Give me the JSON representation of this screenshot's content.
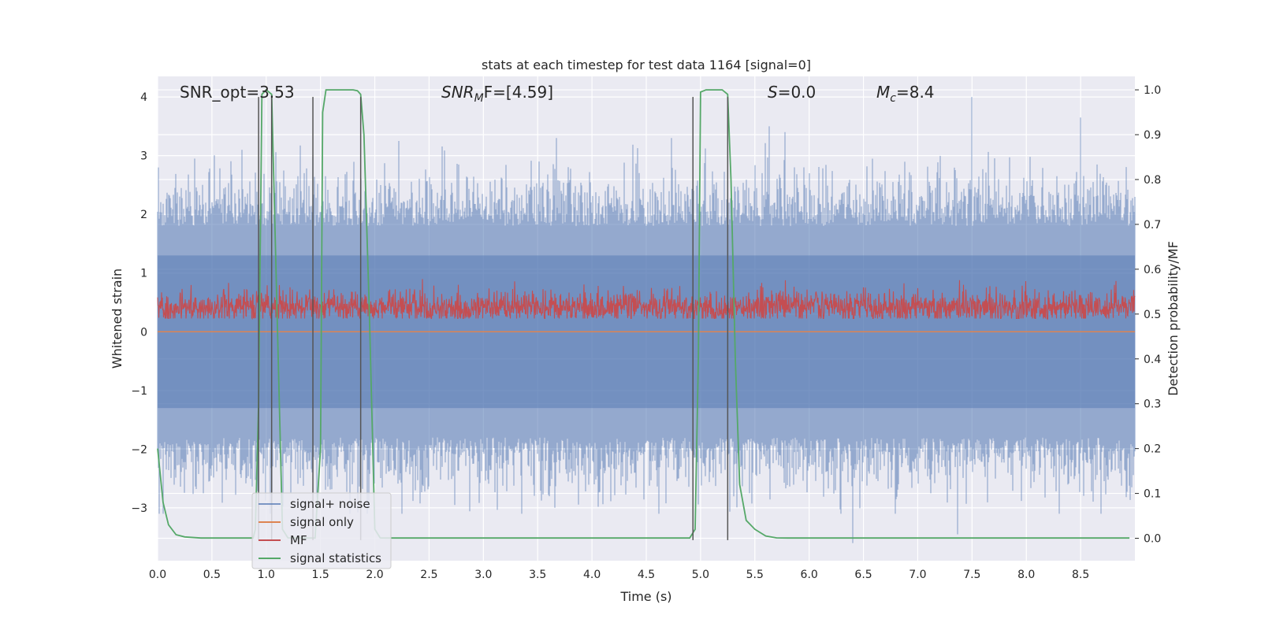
{
  "chart_data": {
    "type": "line",
    "title": "stats at each timestep for test data 1164 [signal=0]",
    "xlabel": "Time (s)",
    "ylabel": "Whitened strain",
    "ylabel_right": "Detection probability/MF",
    "xlim": [
      0,
      9
    ],
    "ylim": [
      -3.9,
      4.35
    ],
    "ylim_right": [
      -0.05,
      1.03
    ],
    "xticks": [
      0.0,
      0.5,
      1.0,
      1.5,
      2.0,
      2.5,
      3.0,
      3.5,
      4.0,
      4.5,
      5.0,
      5.5,
      6.0,
      6.5,
      7.0,
      7.5,
      8.0,
      8.5
    ],
    "xtick_labels": [
      "0.0",
      "0.5",
      "1.0",
      "1.5",
      "2.0",
      "2.5",
      "3.0",
      "3.5",
      "4.0",
      "4.5",
      "5.0",
      "5.5",
      "6.0",
      "6.5",
      "7.0",
      "7.5",
      "8.0",
      "8.5"
    ],
    "yticks": [
      -3,
      -2,
      -1,
      0,
      1,
      2,
      3,
      4
    ],
    "ytick_labels": [
      "−3",
      "−2",
      "−1",
      "0",
      "1",
      "2",
      "3",
      "4"
    ],
    "yticks_right": [
      0.0,
      0.1,
      0.2,
      0.3,
      0.4,
      0.5,
      0.6,
      0.7,
      0.8,
      0.9,
      1.0
    ],
    "ytick_labels_right": [
      "0.0",
      "0.1",
      "0.2",
      "0.3",
      "0.4",
      "0.5",
      "0.6",
      "0.7",
      "0.8",
      "0.9",
      "1.0"
    ],
    "annotations": {
      "snr_opt": "SNR_opt=3.53",
      "snr_mf_sym": "SNR",
      "snr_mf_sub": "M",
      "snr_mf_rest": "F=[4.59]",
      "s_sym": "S",
      "s_rest": "=0.0",
      "mc_sym": "M",
      "mc_sub": "c",
      "mc_rest": "=8.4"
    },
    "vertical_lines_s": [
      0.93,
      1.05,
      1.43,
      1.87,
      4.93,
      5.25
    ],
    "series": [
      {
        "name": "signal+ noise",
        "color": "#4c72b0",
        "axis": "left",
        "description": "whitened noise, amplitude envelope approx ±1.8 with spikes up to 4.0 and down to -3.6",
        "peaks": [
          {
            "x": 0.78,
            "y": 3.1
          },
          {
            "x": 2.22,
            "y": 3.25
          },
          {
            "x": 5.63,
            "y": 3.5
          },
          {
            "x": 5.78,
            "y": 3.4
          },
          {
            "x": 7.5,
            "y": 4.0
          },
          {
            "x": 8.5,
            "y": 3.65
          },
          {
            "x": 6.4,
            "y": -3.6
          },
          {
            "x": 7.37,
            "y": -3.45
          },
          {
            "x": 1.05,
            "y": -3.45
          }
        ]
      },
      {
        "name": "signal only",
        "color": "#dd8452",
        "axis": "left",
        "x": [
          0,
          9
        ],
        "y": [
          0,
          0
        ]
      },
      {
        "name": "MF",
        "color": "#c44e52",
        "axis": "right",
        "description": "matched-filter output fluctuating between approx 0.49 and 0.58"
      },
      {
        "name": "signal statistics",
        "color": "#55a868",
        "axis": "right",
        "x": [
          0.0,
          0.05,
          0.1,
          0.17,
          0.25,
          0.4,
          0.6,
          0.8,
          0.88,
          0.9,
          0.93,
          0.96,
          1.0,
          1.05,
          1.1,
          1.15,
          1.2,
          1.3,
          1.4,
          1.45,
          1.5,
          1.52,
          1.55,
          1.6,
          1.7,
          1.8,
          1.84,
          1.87,
          1.9,
          1.95,
          2.0,
          2.05,
          2.1,
          3.0,
          4.0,
          4.9,
          4.95,
          4.98,
          5.0,
          5.05,
          5.2,
          5.25,
          5.28,
          5.32,
          5.36,
          5.42,
          5.5,
          5.6,
          5.7,
          5.8,
          6.5,
          7.5,
          8.5,
          8.95
        ],
        "y": [
          0.2,
          0.08,
          0.03,
          0.008,
          0.003,
          0.0005,
          0.0005,
          0.0005,
          0.0005,
          0.02,
          0.3,
          0.99,
          1.0,
          0.99,
          0.5,
          0.02,
          0.001,
          0.0005,
          0.0005,
          0.0005,
          0.2,
          0.95,
          1.0,
          1.0,
          1.0,
          1.0,
          0.998,
          0.99,
          0.9,
          0.5,
          0.02,
          0.001,
          0.0005,
          0.0005,
          0.0005,
          0.0005,
          0.02,
          0.4,
          0.995,
          1.0,
          1.0,
          0.99,
          0.8,
          0.4,
          0.12,
          0.04,
          0.02,
          0.005,
          0.001,
          0.0005,
          0.0005,
          0.0005,
          0.0005,
          0.0005
        ]
      }
    ],
    "legend": {
      "position": "lower-left",
      "entries": [
        "signal+ noise",
        "signal only",
        "MF",
        "signal statistics"
      ]
    }
  }
}
